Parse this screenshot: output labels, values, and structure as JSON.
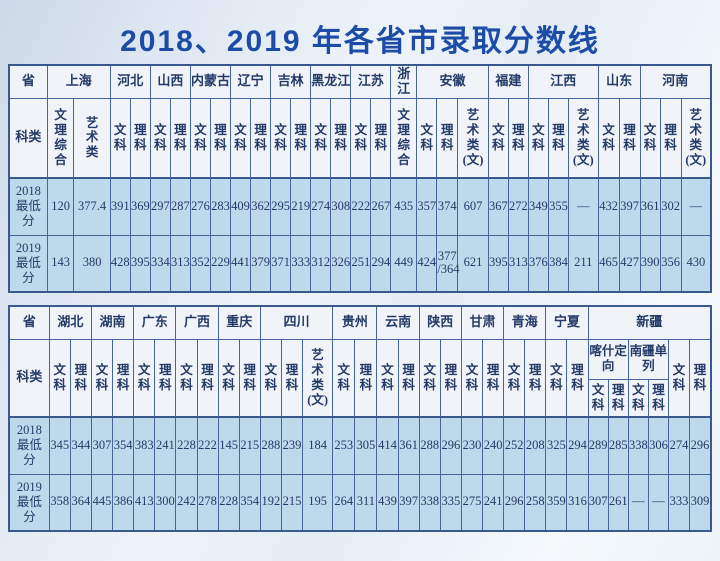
{
  "title": "2018、2019 年各省市录取分数线",
  "labels": {
    "province": "省",
    "category": "科类",
    "row_2018": "2018最低分",
    "row_2019": "2019最低分"
  },
  "colors": {
    "title_blue": "#1d4ca6",
    "border_dark": "#3a5a8e",
    "border_inner": "#46659c",
    "header_bg": "#f0f3f8",
    "cell_bg": "#bed8ec",
    "text": "#243b68"
  },
  "tables": [
    {
      "name": "table-1-north-east",
      "label_col_w": 40,
      "provinces": [
        {
          "name": "上海",
          "cols": [
            {
              "t": "文理综合",
              "w": 28
            },
            {
              "t": "艺术类",
              "w": 38
            }
          ]
        },
        {
          "name": "河北",
          "cols": [
            {
              "t": "文科",
              "w": 21
            },
            {
              "t": "理科",
              "w": 21
            }
          ]
        },
        {
          "name": "山西",
          "cols": [
            {
              "t": "文科",
              "w": 21
            },
            {
              "t": "理科",
              "w": 21
            }
          ]
        },
        {
          "name": "内蒙古",
          "cols": [
            {
              "t": "文科",
              "w": 21
            },
            {
              "t": "理科",
              "w": 21
            }
          ]
        },
        {
          "name": "辽宁",
          "cols": [
            {
              "t": "文科",
              "w": 21
            },
            {
              "t": "理科",
              "w": 21
            }
          ]
        },
        {
          "name": "吉林",
          "cols": [
            {
              "t": "文科",
              "w": 21
            },
            {
              "t": "理科",
              "w": 21
            }
          ]
        },
        {
          "name": "黑龙江",
          "cols": [
            {
              "t": "文科",
              "w": 21
            },
            {
              "t": "理科",
              "w": 21
            }
          ]
        },
        {
          "name": "江苏",
          "cols": [
            {
              "t": "文科",
              "w": 21
            },
            {
              "t": "理科",
              "w": 21
            }
          ]
        },
        {
          "name": "浙江",
          "cols": [
            {
              "t": "文理综合",
              "w": 27
            }
          ]
        },
        {
          "name": "安徽",
          "cols": [
            {
              "t": "文科",
              "w": 21
            },
            {
              "t": "理科",
              "w": 22
            },
            {
              "t": "艺术类(文)",
              "w": 32
            }
          ]
        },
        {
          "name": "福建",
          "cols": [
            {
              "t": "文科",
              "w": 21
            },
            {
              "t": "理科",
              "w": 21
            }
          ]
        },
        {
          "name": "江西",
          "cols": [
            {
              "t": "文科",
              "w": 21
            },
            {
              "t": "理科",
              "w": 21
            },
            {
              "t": "艺术类(文)",
              "w": 31
            }
          ]
        },
        {
          "name": "山东",
          "cols": [
            {
              "t": "文科",
              "w": 22
            },
            {
              "t": "理科",
              "w": 22
            }
          ]
        },
        {
          "name": "河南",
          "cols": [
            {
              "t": "文科",
              "w": 21
            },
            {
              "t": "理科",
              "w": 22
            },
            {
              "t": "艺术类(文)",
              "w": 31
            }
          ]
        }
      ],
      "rows": [
        {
          "label": "2018最低分",
          "values": [
            "120",
            "377.4",
            "391",
            "369",
            "297",
            "287",
            "276",
            "283",
            "409",
            "362",
            "295",
            "219",
            "274",
            "308",
            "222",
            "267",
            "435",
            "357",
            "374",
            "607",
            "367",
            "272",
            "349",
            "355",
            "—",
            "432",
            "397",
            "361",
            "302",
            "—"
          ]
        },
        {
          "label": "2019最低分",
          "values": [
            "143",
            "380",
            "428",
            "395",
            "334",
            "313",
            "352",
            "229",
            "441",
            "379",
            "371",
            "333",
            "312",
            "326",
            "251",
            "294",
            "449",
            "424",
            "377/364",
            "621",
            "395",
            "313",
            "376",
            "384",
            "211",
            "465",
            "427",
            "390",
            "356",
            "430"
          ]
        }
      ]
    },
    {
      "name": "table-2-south-west",
      "label_col_w": 40,
      "provinces": [
        {
          "name": "湖北",
          "cols": [
            {
              "t": "文科",
              "w": 21
            },
            {
              "t": "理科",
              "w": 21
            }
          ]
        },
        {
          "name": "湖南",
          "cols": [
            {
              "t": "文科",
              "w": 21
            },
            {
              "t": "理科",
              "w": 21
            }
          ]
        },
        {
          "name": "广东",
          "cols": [
            {
              "t": "文科",
              "w": 21
            },
            {
              "t": "理科",
              "w": 21
            }
          ]
        },
        {
          "name": "广西",
          "cols": [
            {
              "t": "文科",
              "w": 21
            },
            {
              "t": "理科",
              "w": 21
            }
          ]
        },
        {
          "name": "重庆",
          "cols": [
            {
              "t": "文科",
              "w": 21
            },
            {
              "t": "理科",
              "w": 21
            }
          ]
        },
        {
          "name": "四川",
          "cols": [
            {
              "t": "文科",
              "w": 21
            },
            {
              "t": "理科",
              "w": 21
            },
            {
              "t": "艺术类(文)",
              "w": 30
            }
          ]
        },
        {
          "name": "贵州",
          "cols": [
            {
              "t": "文科",
              "w": 22
            },
            {
              "t": "理科",
              "w": 22
            }
          ]
        },
        {
          "name": "云南",
          "cols": [
            {
              "t": "文科",
              "w": 21
            },
            {
              "t": "理科",
              "w": 21
            }
          ]
        },
        {
          "name": "陕西",
          "cols": [
            {
              "t": "文科",
              "w": 21
            },
            {
              "t": "理科",
              "w": 21
            }
          ]
        },
        {
          "name": "甘肃",
          "cols": [
            {
              "t": "文科",
              "w": 21
            },
            {
              "t": "理科",
              "w": 21
            }
          ]
        },
        {
          "name": "青海",
          "cols": [
            {
              "t": "文科",
              "w": 21
            },
            {
              "t": "理科",
              "w": 21
            }
          ]
        },
        {
          "name": "宁夏",
          "cols": [
            {
              "t": "文科",
              "w": 21
            },
            {
              "t": "理科",
              "w": 21
            }
          ]
        },
        {
          "name": "新疆",
          "groups": [
            {
              "name": "喀什定向",
              "cols": [
                {
                  "t": "文科",
                  "w": 20
                },
                {
                  "t": "理科",
                  "w": 20
                }
              ]
            },
            {
              "name": "南疆单列",
              "cols": [
                {
                  "t": "文科",
                  "w": 20
                },
                {
                  "t": "理科",
                  "w": 20
                }
              ]
            }
          ],
          "cols": [
            {
              "t": "文科",
              "w": 21
            },
            {
              "t": "理科",
              "w": 21
            }
          ]
        }
      ],
      "rows": [
        {
          "label": "2018最低分",
          "values": [
            "345",
            "344",
            "307",
            "354",
            "383",
            "241",
            "228",
            "222",
            "145",
            "215",
            "288",
            "239",
            "184",
            "253",
            "305",
            "414",
            "361",
            "288",
            "296",
            "230",
            "240",
            "252",
            "208",
            "325",
            "294",
            "289",
            "285",
            "338",
            "306",
            "274",
            "296"
          ]
        },
        {
          "label": "2019最低分",
          "values": [
            "358",
            "364",
            "445",
            "386",
            "413",
            "300",
            "242",
            "278",
            "228",
            "354",
            "192",
            "215",
            "195",
            "264",
            "311",
            "439",
            "397",
            "338",
            "335",
            "275",
            "241",
            "296",
            "258",
            "359",
            "316",
            "307",
            "261",
            "—",
            "—",
            "333",
            "309"
          ]
        }
      ]
    }
  ]
}
